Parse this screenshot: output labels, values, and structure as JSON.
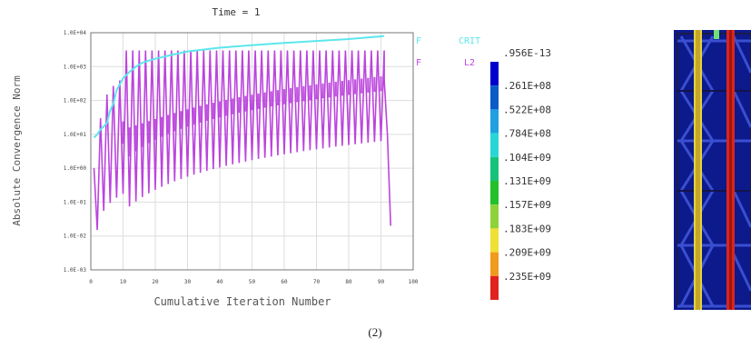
{
  "figure_caption": "(2)",
  "chart_data": {
    "type": "line",
    "title": "Time = 1",
    "xlabel": "Cumulative Iteration Number",
    "ylabel": "Absolute Convergence Norm",
    "xlim": [
      0,
      100
    ],
    "ylim_log10": [
      -3,
      4
    ],
    "y_scale": "log",
    "x_ticks": [
      0,
      10,
      20,
      30,
      40,
      50,
      60,
      70,
      80,
      90,
      100
    ],
    "y_tick_labels": [
      "1.0E+04",
      "1.0E+03",
      "1.0E+02",
      "1.0E+01",
      "1.0E+00",
      "1.0E-01",
      "1.0E-02",
      "1.0E-03"
    ],
    "grid": true,
    "legend_placement": "top-right outside",
    "series": [
      {
        "name": "F CRIT",
        "legend_left": "F",
        "legend_right": "CRIT",
        "color": "#5ce6ee",
        "x": [
          1,
          2,
          3,
          4,
          5,
          6,
          7,
          8,
          9,
          10,
          12,
          14,
          16,
          18,
          20,
          25,
          30,
          40,
          50,
          60,
          70,
          80,
          90,
          91
        ],
        "y": [
          8,
          10,
          14,
          17,
          22,
          50,
          80,
          200,
          300,
          450,
          700,
          1000,
          1300,
          1500,
          1700,
          2200,
          2800,
          3600,
          4300,
          5000,
          5700,
          6500,
          7800,
          8000
        ]
      },
      {
        "name": "F L2",
        "legend_left": "F",
        "legend_right": "L2",
        "color": "#bb44dd",
        "cycle_period": 2,
        "peak_value": 3000,
        "tail": {
          "x": [
            91,
            92,
            93
          ],
          "y": [
            400,
            10,
            0.02
          ]
        }
      }
    ],
    "contour_legend": {
      "labels": [
        ".956E-13",
        ".261E+08",
        ".522E+08",
        ".784E+08",
        ".104E+09",
        ".131E+09",
        ".157E+09",
        ".183E+09",
        ".209E+09",
        ".235E+09"
      ],
      "colors": [
        "#0000cc",
        "#0a5ac8",
        "#1fa0e0",
        "#29d6d6",
        "#16c27a",
        "#22c02a",
        "#8ed23a",
        "#f0e033",
        "#f09a1e",
        "#e0231c"
      ]
    }
  }
}
